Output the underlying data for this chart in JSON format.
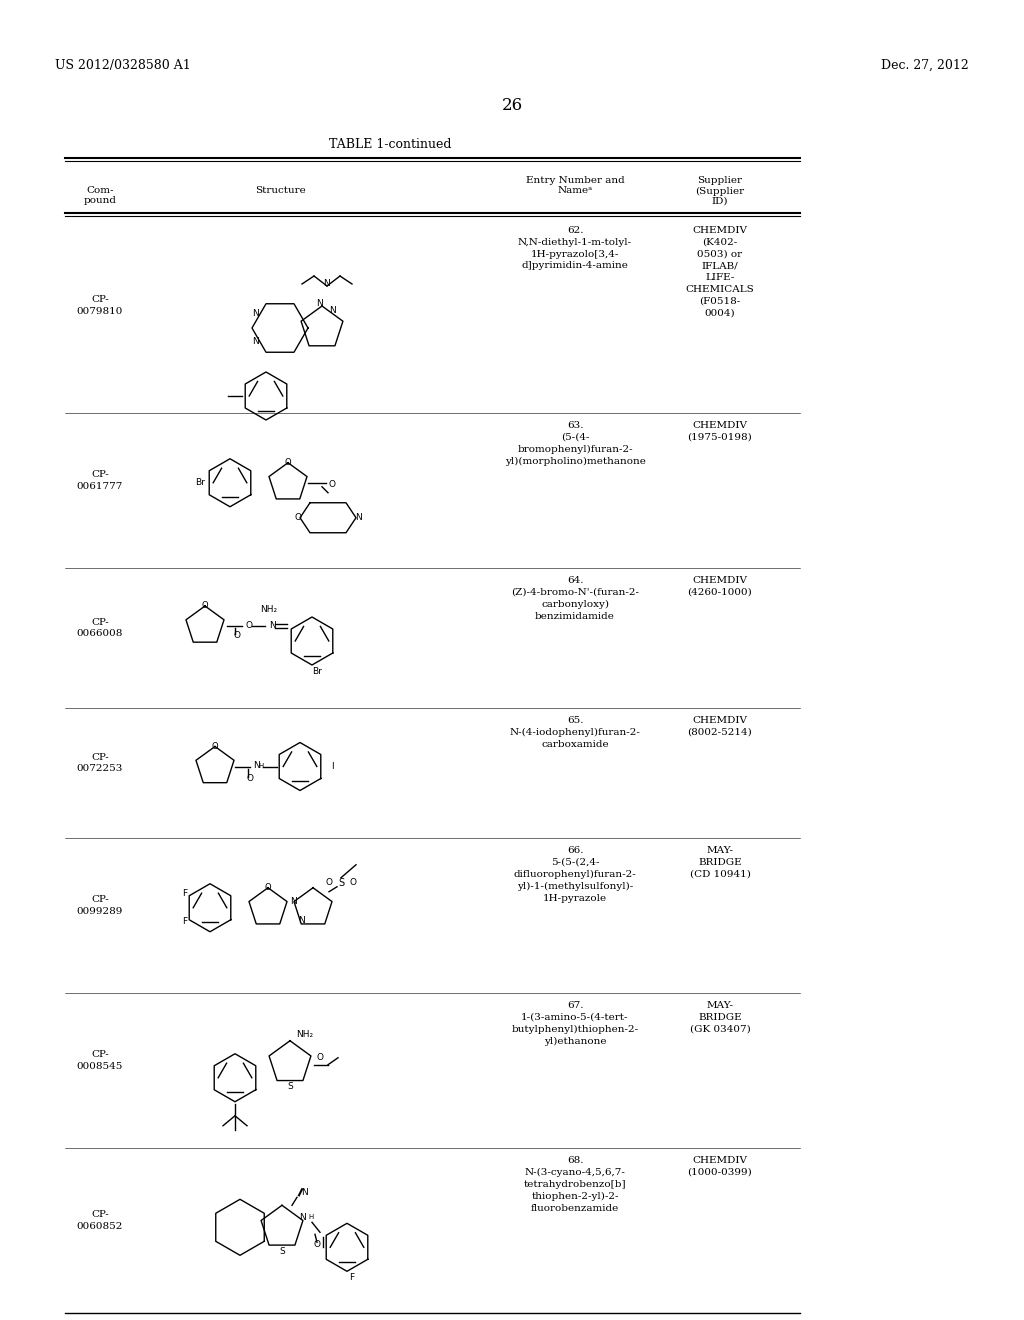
{
  "page_header_left": "US 2012/0328580 A1",
  "page_header_right": "Dec. 27, 2012",
  "page_number": "26",
  "table_title": "TABLE 1-continued",
  "col_headers": {
    "compound": "Com-\npound",
    "structure": "Structure",
    "entry": "Entry Number and\nNameᵃ",
    "supplier": "Supplier\n(Supplier\nID)"
  },
  "rows": [
    {
      "compound": "CP-\n0079810",
      "entry": "62.\nN,N-diethyl-1-m-tolyl-\n1H-pyrazolo[3,4-\nd]pyrimidin-4-amine",
      "supplier": "CHEMDIV\n(K402-\n0503) or\nIFLAB/\nLIFE-\nCHEMICALS\n(F0518-\n0004)"
    },
    {
      "compound": "CP-\n0061777",
      "entry": "63.\n(5-(4-\nbromophenyl)furan-2-\nyl)(morpholino)methanone",
      "supplier": "CHEMDIV\n(1975-0198)"
    },
    {
      "compound": "CP-\n0066008",
      "entry": "64.\n(Z)-4-bromo-N'-(furan-2-\ncarbonyloxy)\nbenzimidamide",
      "supplier": "CHEMDIV\n(4260-1000)"
    },
    {
      "compound": "CP-\n0072253",
      "entry": "65.\nN-(4-iodophenyl)furan-2-\ncarboxamide",
      "supplier": "CHEMDIV\n(8002-5214)"
    },
    {
      "compound": "CP-\n0099289",
      "entry": "66.\n5-(5-(2,4-\ndifluorophenyl)furan-2-\nyl)-1-(methylsulfonyl)-\n1H-pyrazole",
      "supplier": "MAY-\nBRIDGE\n(CD 10941)"
    },
    {
      "compound": "CP-\n0008545",
      "entry": "67.\n1-(3-amino-5-(4-tert-\nbutylphenyl)thiophen-2-\nyl)ethanone",
      "supplier": "MAY-\nBRIDGE\n(GK 03407)"
    },
    {
      "compound": "CP-\n0060852",
      "entry": "68.\nN-(3-cyano-4,5,6,7-\ntetrahydrobenzo[b]\nthiophen-2-yl)-2-\nfluorobenzamide",
      "supplier": "CHEMDIV\n(1000-0399)"
    }
  ],
  "bg_color": "#ffffff",
  "text_color": "#000000",
  "line_color": "#000000"
}
